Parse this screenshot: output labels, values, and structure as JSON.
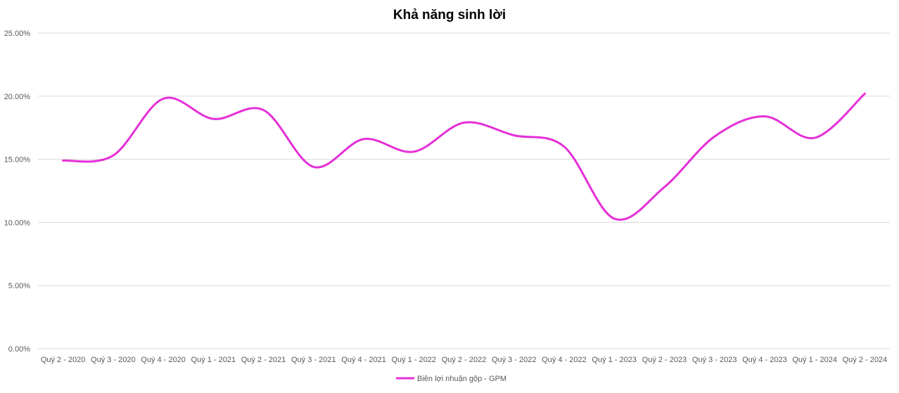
{
  "chart_data": {
    "type": "line",
    "title": "Khả năng sinh lời",
    "xlabel": "",
    "ylabel": "",
    "categories": [
      "Quý 2 - 2020",
      "Quý 3 - 2020",
      "Quý 4 - 2020",
      "Quý 1 - 2021",
      "Quý 2 - 2021",
      "Quý 3 - 2021",
      "Quý 4 - 2021",
      "Quý 1 - 2022",
      "Quý 2 - 2022",
      "Quý 3 - 2022",
      "Quý 4 - 2022",
      "Quý 1 - 2023",
      "Quý 2 - 2023",
      "Quý 3 - 2023",
      "Quý 4 - 2023",
      "Quý 1 - 2024",
      "Quý 2 - 2024"
    ],
    "series": [
      {
        "name": "Biên lợi nhuận gộp - GPM",
        "color": "#e52fd8",
        "values": [
          0.149,
          0.153,
          0.198,
          0.182,
          0.189,
          0.144,
          0.166,
          0.156,
          0.179,
          0.169,
          0.16,
          0.103,
          0.128,
          0.168,
          0.184,
          0.167,
          0.202
        ]
      }
    ],
    "ylim": [
      0,
      0.25
    ],
    "yticks": [
      "0.00%",
      "5.00%",
      "10.00%",
      "15.00%",
      "20.00%",
      "25.00%"
    ],
    "smooth": true,
    "grid": true,
    "legend_position": "bottom"
  }
}
